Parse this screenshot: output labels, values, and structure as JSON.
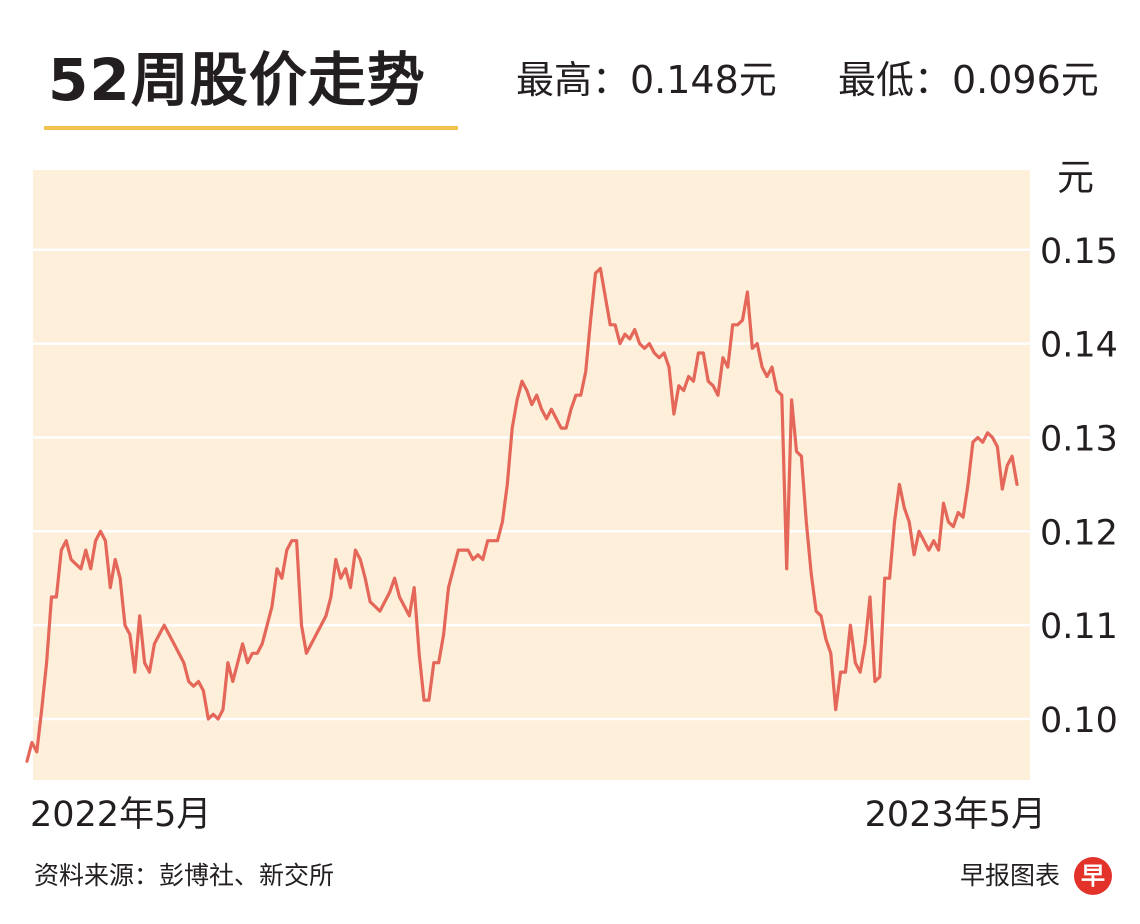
{
  "header": {
    "title": "52周股价走势",
    "high": "最高：0.148元",
    "low": "最低：0.096元"
  },
  "footer": {
    "source": "资料来源：彭博社、新交所",
    "brand": "早报图表",
    "logo_char": "早"
  },
  "colors": {
    "plot_background": "#fdefd9",
    "line": "#e4675a",
    "gridline": "#ffffff",
    "underline": "#f2c14e",
    "logo": "#e2322a"
  },
  "chart_data": {
    "type": "line",
    "title": "52周股价走势",
    "xlabel": "",
    "ylabel": "元",
    "x_start_label": "2022年5月",
    "x_end_label": "2023年5月",
    "yticks": [
      "0.10",
      "0.11",
      "0.12",
      "0.13",
      "0.14",
      "0.15"
    ],
    "ylim": [
      0.0935,
      0.1585
    ],
    "grid": true,
    "series": [
      {
        "values": [
          0.0955,
          0.0975,
          0.0965,
          0.101,
          0.106,
          0.113,
          0.113,
          0.118,
          0.119,
          0.117,
          0.1165,
          0.116,
          0.118,
          0.116,
          0.119,
          0.12,
          0.119,
          0.114,
          0.117,
          0.115,
          0.11,
          0.109,
          0.105,
          0.111,
          0.106,
          0.105,
          0.108,
          0.109,
          0.11,
          0.109,
          0.108,
          0.107,
          0.106,
          0.104,
          0.1035,
          0.104,
          0.103,
          0.1,
          0.1005,
          0.1,
          0.101,
          0.106,
          0.104,
          0.106,
          0.108,
          0.106,
          0.107,
          0.107,
          0.108,
          0.11,
          0.112,
          0.116,
          0.115,
          0.118,
          0.119,
          0.119,
          0.11,
          0.107,
          0.108,
          0.109,
          0.11,
          0.111,
          0.113,
          0.117,
          0.115,
          0.116,
          0.114,
          0.118,
          0.117,
          0.115,
          0.1125,
          0.112,
          0.1115,
          0.1125,
          0.1135,
          0.115,
          0.113,
          0.112,
          0.111,
          0.114,
          0.107,
          0.102,
          0.102,
          0.106,
          0.106,
          0.109,
          0.114,
          0.116,
          0.118,
          0.118,
          0.118,
          0.117,
          0.1175,
          0.117,
          0.119,
          0.119,
          0.119,
          0.121,
          0.125,
          0.131,
          0.134,
          0.136,
          0.135,
          0.1335,
          0.1345,
          0.133,
          0.132,
          0.133,
          0.132,
          0.131,
          0.131,
          0.133,
          0.1345,
          0.1345,
          0.137,
          0.1425,
          0.1475,
          0.148,
          0.145,
          0.142,
          0.142,
          0.14,
          0.141,
          0.1405,
          0.1415,
          0.14,
          0.1395,
          0.14,
          0.139,
          0.1385,
          0.139,
          0.1375,
          0.1325,
          0.1355,
          0.135,
          0.1365,
          0.136,
          0.139,
          0.139,
          0.136,
          0.1355,
          0.1345,
          0.1385,
          0.1375,
          0.142,
          0.142,
          0.1425,
          0.1455,
          0.1395,
          0.14,
          0.1375,
          0.1365,
          0.1375,
          0.135,
          0.1345,
          0.116,
          0.134,
          0.1285,
          0.128,
          0.121,
          0.1155,
          0.1115,
          0.111,
          0.1085,
          0.107,
          0.101,
          0.105,
          0.105,
          0.11,
          0.106,
          0.105,
          0.108,
          0.113,
          0.104,
          0.1045,
          0.115,
          0.115,
          0.121,
          0.125,
          0.1225,
          0.121,
          0.1175,
          0.12,
          0.119,
          0.118,
          0.119,
          0.118,
          0.123,
          0.121,
          0.1205,
          0.122,
          0.1215,
          0.125,
          0.1295,
          0.13,
          0.1295,
          0.1305,
          0.13,
          0.129,
          0.1245,
          0.127,
          0.128,
          0.125
        ]
      }
    ]
  }
}
